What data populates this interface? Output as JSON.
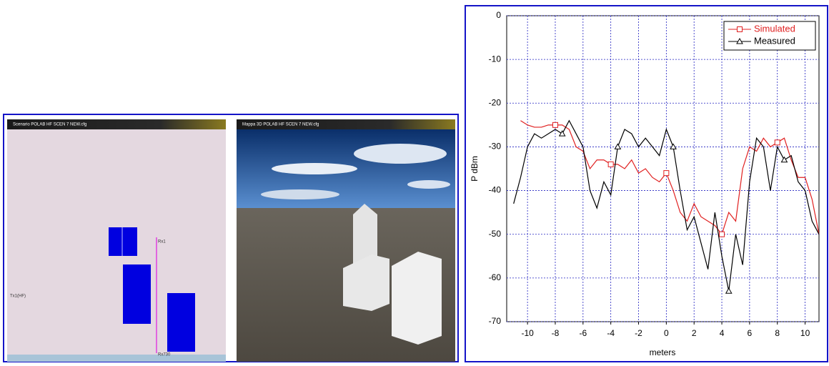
{
  "panels": {
    "scenario": {
      "title": "Scenario POLAB HF SCEN 7 NEW.cfg",
      "labels": [
        "Rx1",
        "Tx1(HF)",
        "Rx730"
      ]
    },
    "map3d": {
      "title": "Mappa 3D POLAB HF SCEN 7 NEW.cfg"
    }
  },
  "chart_data": {
    "type": "line",
    "ylabel": "P dBm",
    "xlabel": "meters",
    "x": [
      -11,
      -10.5,
      -10,
      -9.5,
      -9,
      -8.5,
      -8,
      -7.5,
      -7,
      -6.5,
      -6,
      -5.5,
      -5,
      -4.5,
      -4,
      -3.5,
      -3,
      -2.5,
      -2,
      -1.5,
      -1,
      -0.5,
      0,
      0.5,
      1,
      1.5,
      2,
      2.5,
      3,
      3.5,
      4,
      4.5,
      5,
      5.5,
      6,
      6.5,
      7,
      7.5,
      8,
      8.5,
      9,
      9.5,
      10,
      10.5,
      11
    ],
    "series": [
      {
        "name": "Simulated",
        "color": "#e02020",
        "marker": "square",
        "values": [
          null,
          -24,
          -25,
          -25.5,
          -25.5,
          -25,
          -25,
          -25,
          -26,
          -30,
          -31,
          -35,
          -33,
          -33,
          -34,
          -34,
          -35,
          -33,
          -36,
          -35,
          -37,
          -38,
          -36,
          -40,
          -45,
          -47,
          -43,
          -46,
          -47,
          -48,
          -50,
          -45,
          -47,
          -35,
          -30,
          -31,
          -28,
          -30,
          -29,
          -28,
          -33,
          -37,
          -37,
          -42,
          -50
        ]
      },
      {
        "name": "Measured",
        "color": "#000000",
        "marker": "triangle",
        "values": [
          -43,
          -37,
          -30,
          -27,
          -28,
          -27,
          -26,
          -27,
          -24,
          -27,
          -30,
          -40,
          -44,
          -38,
          -41,
          -30,
          -26,
          -27,
          -30,
          -28,
          -30,
          -32,
          -26,
          -30,
          -40,
          -49,
          -46,
          -52,
          -58,
          -45,
          -55,
          -63,
          -50,
          -57,
          -38,
          -28,
          -30,
          -40,
          -30,
          -33,
          -32,
          -38,
          -40,
          -47,
          -50
        ]
      }
    ],
    "xlim": [
      -11.5,
      11
    ],
    "ylim": [
      -70,
      0
    ],
    "xticks": [
      -10,
      -8,
      -6,
      -4,
      -2,
      0,
      2,
      4,
      6,
      8,
      10
    ],
    "yticks": [
      0,
      -10,
      -20,
      -30,
      -40,
      -50,
      -60,
      -70
    ],
    "grid": true,
    "legend": "upper right"
  }
}
